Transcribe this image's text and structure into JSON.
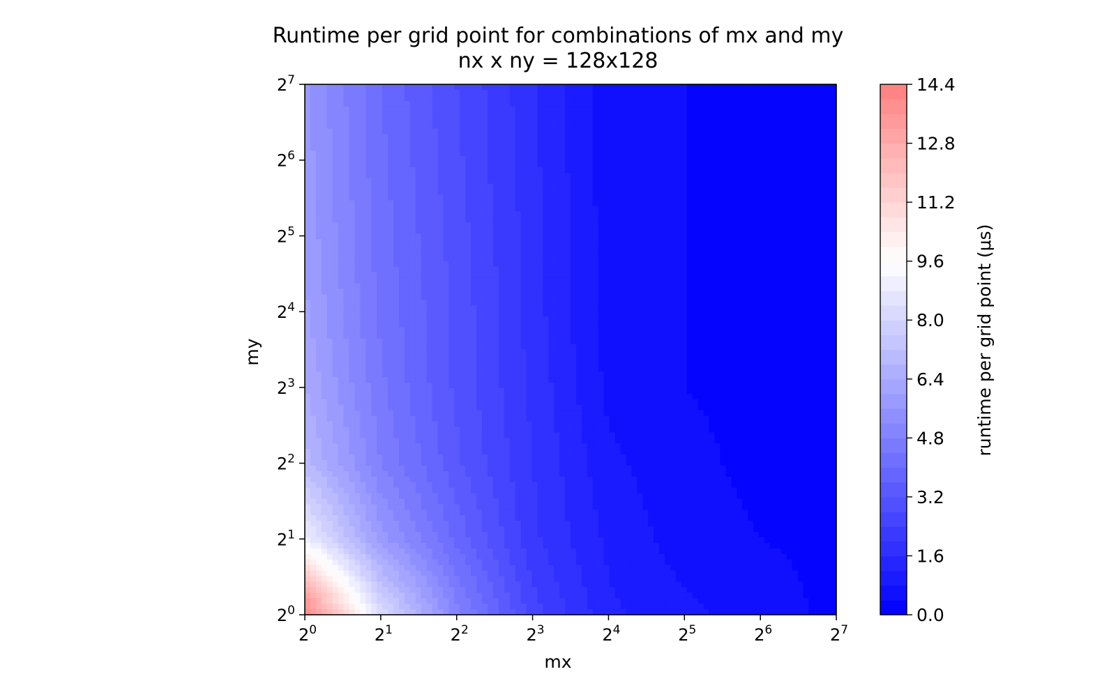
{
  "chart_data": {
    "type": "heatmap",
    "title": "Runtime per grid point for combinations of mx and my",
    "subtitle": "nx x ny = 128x128",
    "xlabel": "mx",
    "ylabel": "my",
    "x_scale": "log2",
    "y_scale": "log2",
    "x": [
      1,
      2,
      4,
      8,
      16,
      32,
      64,
      128
    ],
    "y": [
      1,
      2,
      4,
      8,
      16,
      32,
      64,
      128
    ],
    "x_tick_labels": [
      "2^0",
      "2^1",
      "2^2",
      "2^3",
      "2^4",
      "2^5",
      "2^6",
      "2^7"
    ],
    "y_tick_labels": [
      "2^0",
      "2^1",
      "2^2",
      "2^3",
      "2^4",
      "2^5",
      "2^6",
      "2^7"
    ],
    "z": [
      [
        14.4,
        8.3,
        5.0,
        2.6,
        1.3,
        0.9,
        0.6,
        0.3
      ],
      [
        9.0,
        5.8,
        3.9,
        2.1,
        1.1,
        0.6,
        0.4,
        0.3
      ],
      [
        7.0,
        4.8,
        3.3,
        2.0,
        0.9,
        0.5,
        0.3,
        0.3
      ],
      [
        6.4,
        4.5,
        3.1,
        1.9,
        0.7,
        0.4,
        0.3,
        0.3
      ],
      [
        6.1,
        4.3,
        3.1,
        1.8,
        0.6,
        0.4,
        0.3,
        0.3
      ],
      [
        5.9,
        4.2,
        3.0,
        1.8,
        0.6,
        0.4,
        0.3,
        0.3
      ],
      [
        5.8,
        4.1,
        2.9,
        1.7,
        0.6,
        0.4,
        0.3,
        0.3
      ],
      [
        5.7,
        4.0,
        2.8,
        1.7,
        0.6,
        0.4,
        0.3,
        0.3
      ]
    ],
    "colorbar": {
      "label": "runtime per grid point (μs)",
      "min": 0.0,
      "max": 14.4,
      "ticks": [
        "0.0",
        "1.6",
        "3.2",
        "4.8",
        "6.4",
        "8.0",
        "9.6",
        "11.2",
        "12.8",
        "14.4"
      ],
      "low_color": "#0000ff",
      "mid_color": "#ffffff",
      "high_color": "#ff8080"
    },
    "grid": false
  }
}
